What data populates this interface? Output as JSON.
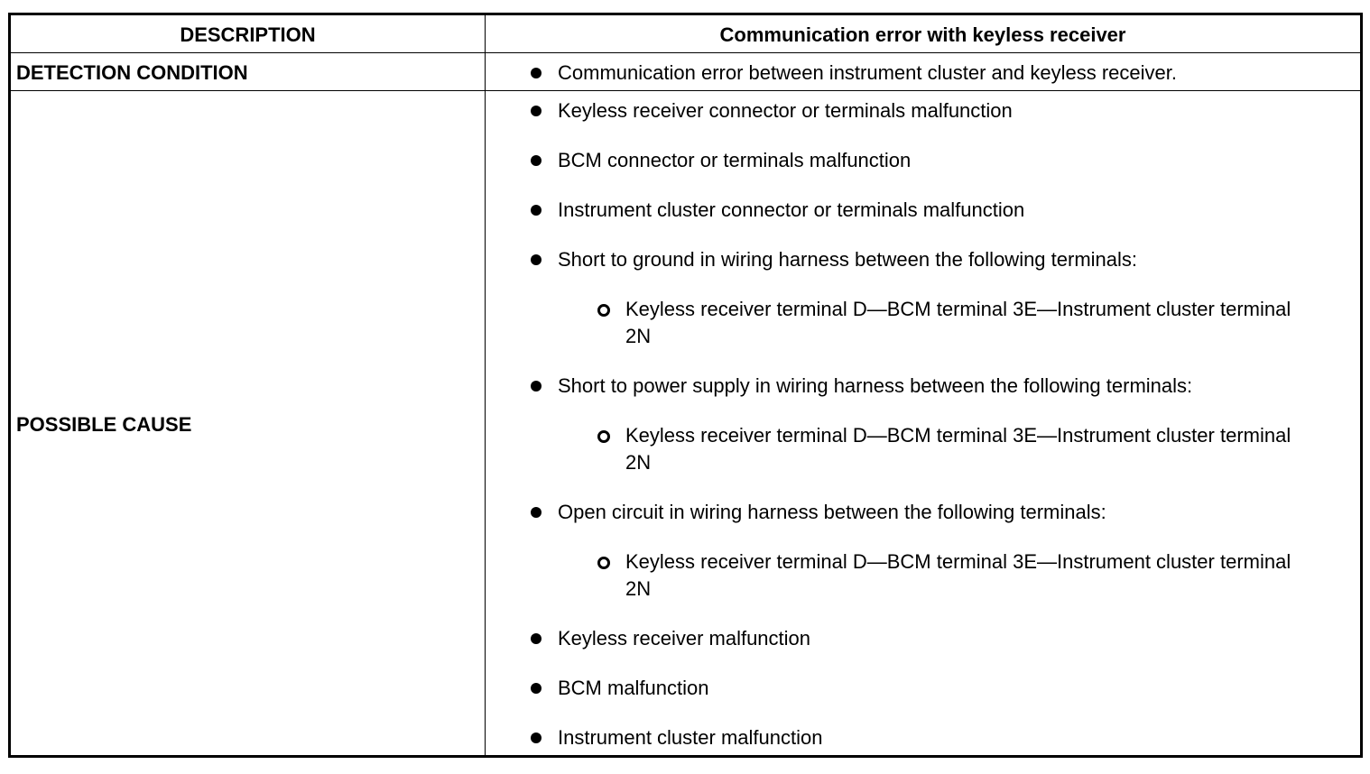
{
  "header": {
    "col1": "DESCRIPTION",
    "col2": "Communication error with keyless receiver"
  },
  "detection_condition": {
    "label": "DETECTION CONDITION",
    "items": [
      "Communication error between instrument cluster and keyless receiver."
    ]
  },
  "possible_cause": {
    "label": "POSSIBLE CAUSE",
    "items": [
      {
        "text": "Keyless receiver connector or terminals malfunction",
        "level": 1
      },
      {
        "text": "BCM connector or terminals malfunction",
        "level": 1
      },
      {
        "text": "Instrument cluster connector or terminals malfunction",
        "level": 1
      },
      {
        "text": "Short to ground in wiring harness between the following terminals:",
        "level": 1
      },
      {
        "text": "Keyless receiver terminal D—BCM terminal 3E—Instrument cluster terminal 2N",
        "level": 2
      },
      {
        "text": "Short to power supply in wiring harness between the following terminals:",
        "level": 1
      },
      {
        "text": "Keyless receiver terminal D—BCM terminal 3E—Instrument cluster terminal 2N",
        "level": 2
      },
      {
        "text": "Open circuit in wiring harness between the following terminals:",
        "level": 1
      },
      {
        "text": "Keyless receiver terminal D—BCM terminal 3E—Instrument cluster terminal 2N",
        "level": 2
      },
      {
        "text": "Keyless receiver malfunction",
        "level": 1
      },
      {
        "text": "BCM malfunction",
        "level": 1
      },
      {
        "text": "Instrument cluster malfunction",
        "level": 1
      }
    ]
  }
}
